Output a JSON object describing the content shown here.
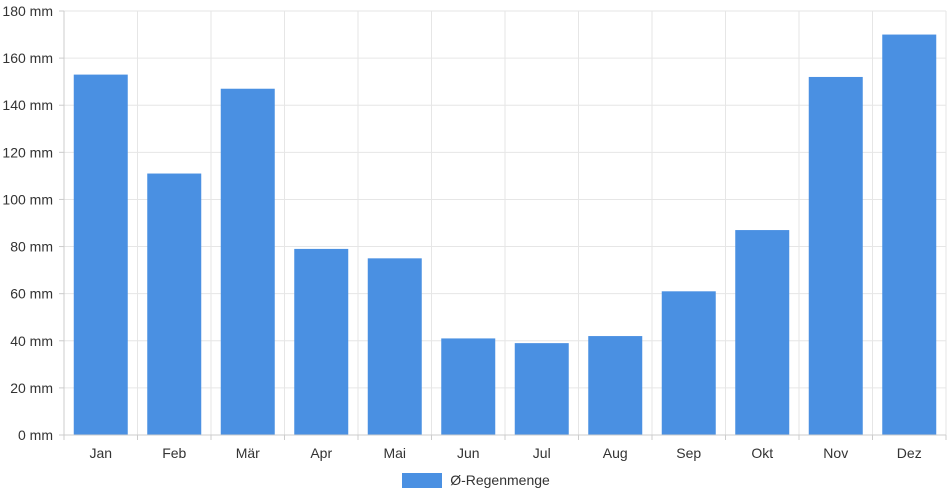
{
  "chart_data": {
    "type": "bar",
    "categories": [
      "Jan",
      "Feb",
      "Mär",
      "Apr",
      "Mai",
      "Jun",
      "Jul",
      "Aug",
      "Sep",
      "Okt",
      "Nov",
      "Dez"
    ],
    "series": [
      {
        "name": "Ø-Regenmenge",
        "values": [
          153,
          111,
          147,
          79,
          75,
          41,
          39,
          42,
          61,
          87,
          152,
          170
        ],
        "color": "#4a90e2"
      }
    ],
    "y_ticks": [
      "0 mm",
      "20 mm",
      "40 mm",
      "60 mm",
      "80 mm",
      "100 mm",
      "120 mm",
      "140 mm",
      "160 mm",
      "180 mm"
    ],
    "ylim": [
      0,
      180
    ],
    "grid": true,
    "legend_position": "bottom-center",
    "colors": {
      "bar": "#4a90e2",
      "grid": "#e6e6e6",
      "axis": "#cccccc",
      "text": "#333333"
    }
  }
}
